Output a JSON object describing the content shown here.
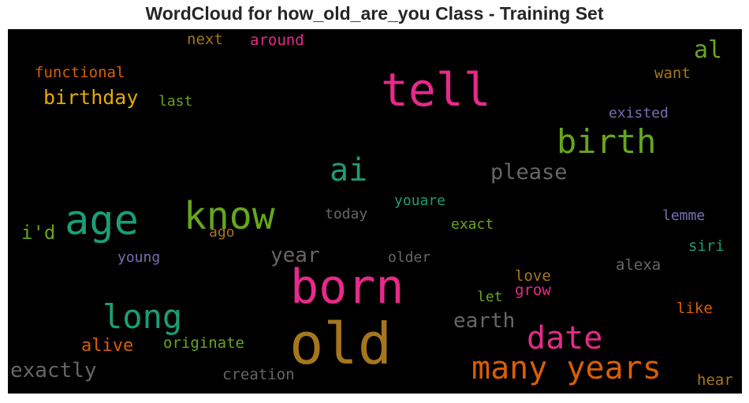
{
  "chart_data": {
    "type": "wordcloud",
    "title": "WordCloud for how_old_are_you Class - Training Set",
    "background": "#000000",
    "words": [
      {
        "text": "old",
        "color": "#a6761d"
      },
      {
        "text": "born",
        "color": "#e7298a"
      },
      {
        "text": "tell",
        "color": "#e7298a"
      },
      {
        "text": "know",
        "color": "#66a61e"
      },
      {
        "text": "age",
        "color": "#1b9e77"
      },
      {
        "text": "many years",
        "color": "#d95f02"
      },
      {
        "text": "birth",
        "color": "#66a61e"
      },
      {
        "text": "date",
        "color": "#e7298a"
      },
      {
        "text": "long",
        "color": "#1b9e77"
      },
      {
        "text": "ai",
        "color": "#1b9e77"
      },
      {
        "text": "please",
        "color": "#666666"
      },
      {
        "text": "exactly",
        "color": "#666666"
      },
      {
        "text": "year",
        "color": "#666666"
      },
      {
        "text": "earth",
        "color": "#666666"
      },
      {
        "text": "birthday",
        "color": "#e6ab02"
      },
      {
        "text": "al",
        "color": "#66a61e"
      },
      {
        "text": "alive",
        "color": "#d95f02"
      },
      {
        "text": "i'd",
        "color": "#66a61e"
      },
      {
        "text": "functional",
        "color": "#d95f02"
      },
      {
        "text": "originate",
        "color": "#66a61e"
      },
      {
        "text": "creation",
        "color": "#666666"
      },
      {
        "text": "around",
        "color": "#e7298a"
      },
      {
        "text": "next",
        "color": "#a6761d"
      },
      {
        "text": "last",
        "color": "#66a61e"
      },
      {
        "text": "want",
        "color": "#a6761d"
      },
      {
        "text": "existed",
        "color": "#7570b3"
      },
      {
        "text": "youare",
        "color": "#1b9e77"
      },
      {
        "text": "today",
        "color": "#666666"
      },
      {
        "text": "exact",
        "color": "#66a61e"
      },
      {
        "text": "lemme",
        "color": "#7570b3"
      },
      {
        "text": "ago",
        "color": "#a6761d"
      },
      {
        "text": "young",
        "color": "#7570b3"
      },
      {
        "text": "older",
        "color": "#666666"
      },
      {
        "text": "siri",
        "color": "#1b9e77"
      },
      {
        "text": "alexa",
        "color": "#666666"
      },
      {
        "text": "love",
        "color": "#a6761d"
      },
      {
        "text": "grow",
        "color": "#e7298a"
      },
      {
        "text": "let",
        "color": "#66a61e"
      },
      {
        "text": "like",
        "color": "#d95f02"
      },
      {
        "text": "hear",
        "color": "#a6761d"
      }
    ]
  }
}
